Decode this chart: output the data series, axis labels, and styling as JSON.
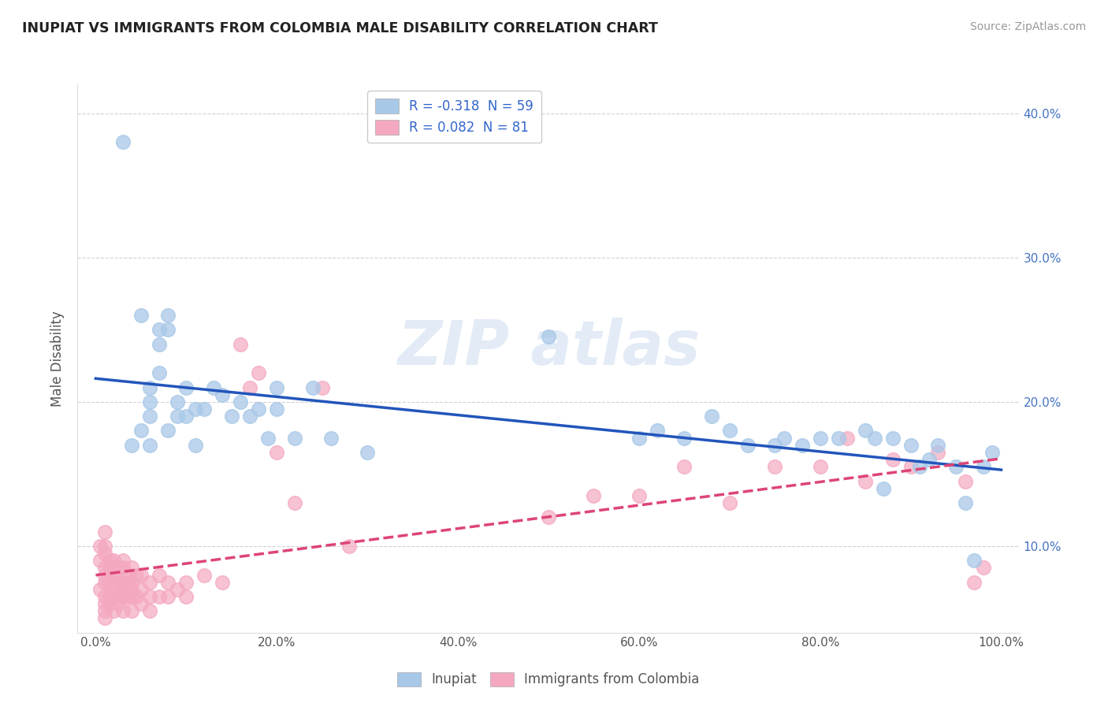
{
  "title": "INUPIAT VS IMMIGRANTS FROM COLOMBIA MALE DISABILITY CORRELATION CHART",
  "source": "Source: ZipAtlas.com",
  "ylabel": "Male Disability",
  "legend_labels": [
    "Inupiat",
    "Immigrants from Colombia"
  ],
  "inupiat_color": "#a8c8e8",
  "colombia_color": "#f4a8c0",
  "inupiat_edge_color": "#a8c8e8",
  "colombia_edge_color": "#f4a8c0",
  "inupiat_line_color": "#2255bb",
  "colombia_line_color": "#dd4477",
  "background_color": "#ffffff",
  "xlim": [
    -0.02,
    1.02
  ],
  "ylim": [
    0.04,
    0.42
  ],
  "xticks": [
    0.0,
    0.2,
    0.4,
    0.6,
    0.8,
    1.0
  ],
  "xtick_labels": [
    "0.0%",
    "20.0%",
    "40.0%",
    "60.0%",
    "80.0%",
    "100.0%"
  ],
  "yticks": [
    0.1,
    0.2,
    0.3,
    0.4
  ],
  "ytick_labels": [
    "10.0%",
    "20.0%",
    "30.0%",
    "40.0%"
  ],
  "inupiat_R": -0.318,
  "inupiat_N": 59,
  "colombia_R": 0.082,
  "colombia_N": 81,
  "inupiat_x": [
    0.03,
    0.04,
    0.05,
    0.05,
    0.06,
    0.06,
    0.06,
    0.06,
    0.07,
    0.07,
    0.07,
    0.08,
    0.08,
    0.08,
    0.09,
    0.09,
    0.1,
    0.1,
    0.11,
    0.11,
    0.12,
    0.13,
    0.14,
    0.15,
    0.16,
    0.17,
    0.18,
    0.19,
    0.2,
    0.2,
    0.22,
    0.24,
    0.26,
    0.3,
    0.5,
    0.6,
    0.62,
    0.65,
    0.68,
    0.7,
    0.72,
    0.75,
    0.76,
    0.78,
    0.8,
    0.82,
    0.85,
    0.86,
    0.87,
    0.88,
    0.9,
    0.91,
    0.92,
    0.93,
    0.95,
    0.96,
    0.97,
    0.98,
    0.99
  ],
  "inupiat_y": [
    0.38,
    0.17,
    0.26,
    0.18,
    0.21,
    0.2,
    0.19,
    0.17,
    0.25,
    0.24,
    0.22,
    0.26,
    0.25,
    0.18,
    0.2,
    0.19,
    0.21,
    0.19,
    0.195,
    0.17,
    0.195,
    0.21,
    0.205,
    0.19,
    0.2,
    0.19,
    0.195,
    0.175,
    0.21,
    0.195,
    0.175,
    0.21,
    0.175,
    0.165,
    0.245,
    0.175,
    0.18,
    0.175,
    0.19,
    0.18,
    0.17,
    0.17,
    0.175,
    0.17,
    0.175,
    0.175,
    0.18,
    0.175,
    0.14,
    0.175,
    0.17,
    0.155,
    0.16,
    0.17,
    0.155,
    0.13,
    0.09,
    0.155,
    0.165
  ],
  "colombia_x": [
    0.005,
    0.005,
    0.005,
    0.01,
    0.01,
    0.01,
    0.01,
    0.01,
    0.01,
    0.01,
    0.01,
    0.01,
    0.01,
    0.015,
    0.015,
    0.015,
    0.015,
    0.015,
    0.02,
    0.02,
    0.02,
    0.02,
    0.02,
    0.02,
    0.025,
    0.025,
    0.025,
    0.025,
    0.03,
    0.03,
    0.03,
    0.03,
    0.03,
    0.03,
    0.035,
    0.035,
    0.035,
    0.04,
    0.04,
    0.04,
    0.04,
    0.04,
    0.045,
    0.045,
    0.05,
    0.05,
    0.05,
    0.06,
    0.06,
    0.06,
    0.07,
    0.07,
    0.08,
    0.08,
    0.09,
    0.1,
    0.1,
    0.12,
    0.14,
    0.16,
    0.17,
    0.18,
    0.2,
    0.22,
    0.25,
    0.28,
    0.5,
    0.55,
    0.6,
    0.65,
    0.7,
    0.75,
    0.8,
    0.83,
    0.85,
    0.88,
    0.9,
    0.93,
    0.96,
    0.97,
    0.98
  ],
  "colombia_y": [
    0.1,
    0.09,
    0.07,
    0.11,
    0.1,
    0.095,
    0.085,
    0.08,
    0.075,
    0.065,
    0.06,
    0.055,
    0.05,
    0.09,
    0.085,
    0.075,
    0.065,
    0.06,
    0.09,
    0.085,
    0.08,
    0.075,
    0.065,
    0.055,
    0.085,
    0.075,
    0.065,
    0.06,
    0.09,
    0.085,
    0.075,
    0.07,
    0.065,
    0.055,
    0.08,
    0.075,
    0.065,
    0.085,
    0.075,
    0.07,
    0.065,
    0.055,
    0.08,
    0.065,
    0.08,
    0.07,
    0.06,
    0.075,
    0.065,
    0.055,
    0.08,
    0.065,
    0.075,
    0.065,
    0.07,
    0.075,
    0.065,
    0.08,
    0.075,
    0.24,
    0.21,
    0.22,
    0.165,
    0.13,
    0.21,
    0.1,
    0.12,
    0.135,
    0.135,
    0.155,
    0.13,
    0.155,
    0.155,
    0.175,
    0.145,
    0.16,
    0.155,
    0.165,
    0.145,
    0.075,
    0.085
  ]
}
